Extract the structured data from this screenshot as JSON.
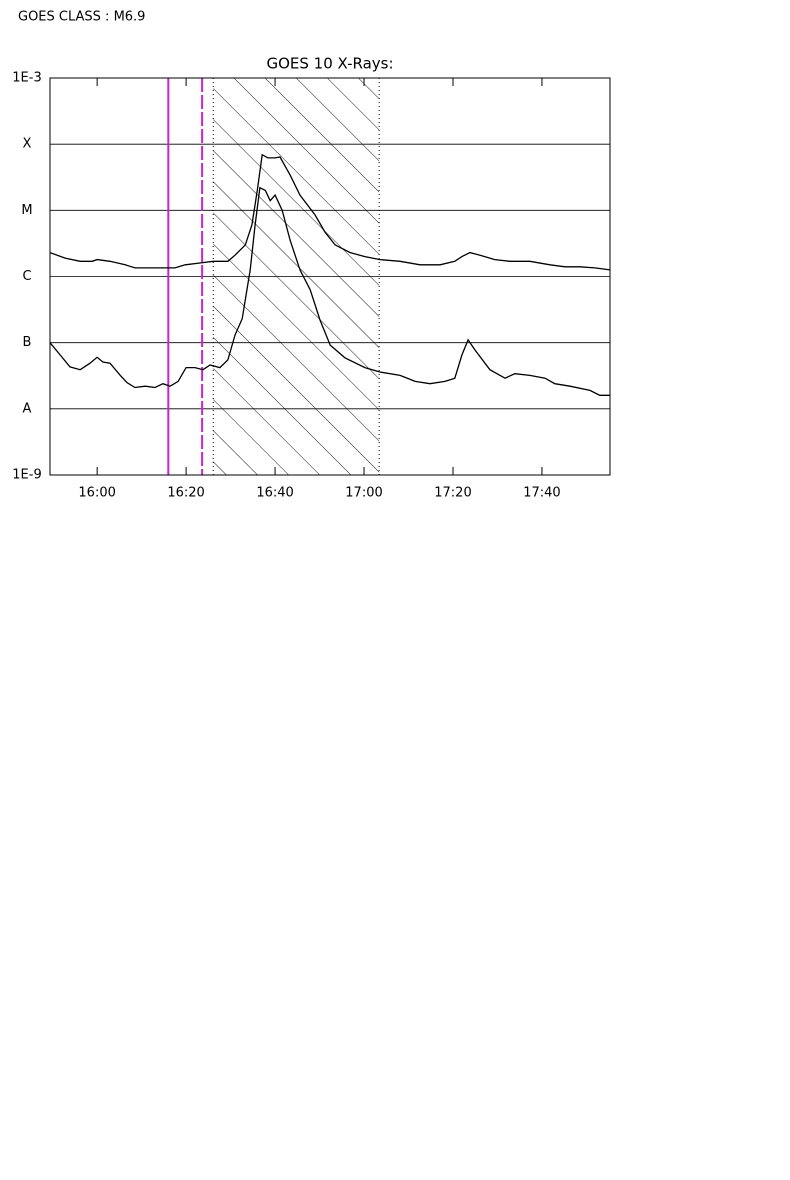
{
  "header_text": "GOES CLASS : M6.9",
  "chart_data": {
    "type": "line",
    "title": "GOES 10 X-Rays:",
    "ylog": true,
    "grid": true,
    "ylim": [
      1e-09,
      0.001
    ],
    "yticks": [
      {
        "value": 1e-09,
        "label": "1E-9"
      },
      {
        "value": 1e-08,
        "label": "A"
      },
      {
        "value": 1e-07,
        "label": "B"
      },
      {
        "value": 1e-06,
        "label": "C"
      },
      {
        "value": 1e-05,
        "label": "M"
      },
      {
        "value": 0.0001,
        "label": "X"
      },
      {
        "value": 0.001,
        "label": "1E-3"
      }
    ],
    "xlim": [
      -10.6,
      115.3
    ],
    "xticks": [
      {
        "value": 0,
        "label": "16:00"
      },
      {
        "value": 20,
        "label": "16:20"
      },
      {
        "value": 40,
        "label": "16:40"
      },
      {
        "value": 60,
        "label": "17:00"
      },
      {
        "value": 80,
        "label": "17:20"
      },
      {
        "value": 100,
        "label": "17:40"
      }
    ],
    "vlines": [
      {
        "x": 16.0,
        "color": "#cc22cc",
        "style": "solid"
      },
      {
        "x": 23.6,
        "color": "#cc22cc",
        "style": "dashed"
      }
    ],
    "shaded_region": {
      "x": [
        26.1,
        63.4
      ],
      "hatch": true
    },
    "series": [
      {
        "color": "#000000",
        "x": [
          -10.6,
          -7.2,
          -3.8,
          -1.1,
          0,
          2.9,
          6.3,
          8.5,
          11.9,
          15.3,
          17.5,
          19.8,
          23.1,
          26.1,
          29.4,
          31.0,
          33.3,
          34.8,
          36.0,
          37.1,
          38.4,
          40.0,
          41.1,
          43.4,
          45.6,
          49.0,
          51.2,
          53.5,
          56.9,
          60.2,
          63.6,
          68.1,
          72.6,
          77.1,
          80.4,
          82.0,
          83.8,
          86.1,
          89.4,
          92.8,
          97.3,
          101.8,
          105.2,
          108.5,
          111.9,
          115.3
        ],
        "values": [
          2.3e-06,
          1.9e-06,
          1.7e-06,
          1.7e-06,
          1.8e-06,
          1.7e-06,
          1.5e-06,
          1.35e-06,
          1.35e-06,
          1.35e-06,
          1.35e-06,
          1.5e-06,
          1.6e-06,
          1.7e-06,
          1.7e-06,
          2.1e-06,
          3e-06,
          6e-06,
          2e-05,
          6.9e-05,
          6.2e-05,
          6.2e-05,
          6.4e-05,
          3.4e-05,
          1.7e-05,
          8.5e-06,
          4.7e-06,
          3e-06,
          2.3e-06,
          2e-06,
          1.8e-06,
          1.7e-06,
          1.5e-06,
          1.5e-06,
          1.7e-06,
          2e-06,
          2.3e-06,
          2.1e-06,
          1.8e-06,
          1.7e-06,
          1.7e-06,
          1.5e-06,
          1.4e-06,
          1.4e-06,
          1.35e-06,
          1.26e-06
        ]
      },
      {
        "color": "#000000",
        "x": [
          -10.6,
          -8.3,
          -6.1,
          -3.8,
          -1.6,
          0,
          1.3,
          2.9,
          5.2,
          6.7,
          8.5,
          10.8,
          13.0,
          14.8,
          16.4,
          18.2,
          20.0,
          22.0,
          23.8,
          25.4,
          27.6,
          29.4,
          31.0,
          32.6,
          34.4,
          35.5,
          36.6,
          37.8,
          38.9,
          40.0,
          41.6,
          43.4,
          45.6,
          47.9,
          50.1,
          52.4,
          55.7,
          60.2,
          63.6,
          68.1,
          71.5,
          74.8,
          78.2,
          80.4,
          82.0,
          83.4,
          84.9,
          88.3,
          91.7,
          93.9,
          97.3,
          100.7,
          102.9,
          106.3,
          110.8,
          113.0,
          115.3
        ],
        "values": [
          1e-07,
          6.5e-08,
          4.3e-08,
          3.9e-08,
          4.9e-08,
          6e-08,
          5.1e-08,
          4.9e-08,
          3.2e-08,
          2.5e-08,
          2.1e-08,
          2.2e-08,
          2.1e-08,
          2.4e-08,
          2.2e-08,
          2.6e-08,
          4.2e-08,
          4.2e-08,
          3.9e-08,
          4.6e-08,
          4.2e-08,
          5.5e-08,
          1.3e-07,
          2.3e-07,
          1.26e-06,
          6e-06,
          2.2e-05,
          2e-05,
          1.4e-05,
          1.7e-05,
          1e-05,
          3.5e-06,
          1.26e-06,
          6.3e-07,
          2.2e-07,
          9.2e-08,
          5.9e-08,
          4.2e-08,
          3.6e-08,
          3.2e-08,
          2.6e-08,
          2.4e-08,
          2.6e-08,
          2.9e-08,
          6.5e-08,
          1.1e-07,
          7.8e-08,
          3.9e-08,
          2.9e-08,
          3.4e-08,
          3.2e-08,
          2.9e-08,
          2.4e-08,
          2.2e-08,
          1.9e-08,
          1.6e-08,
          1.6e-08
        ]
      }
    ]
  }
}
